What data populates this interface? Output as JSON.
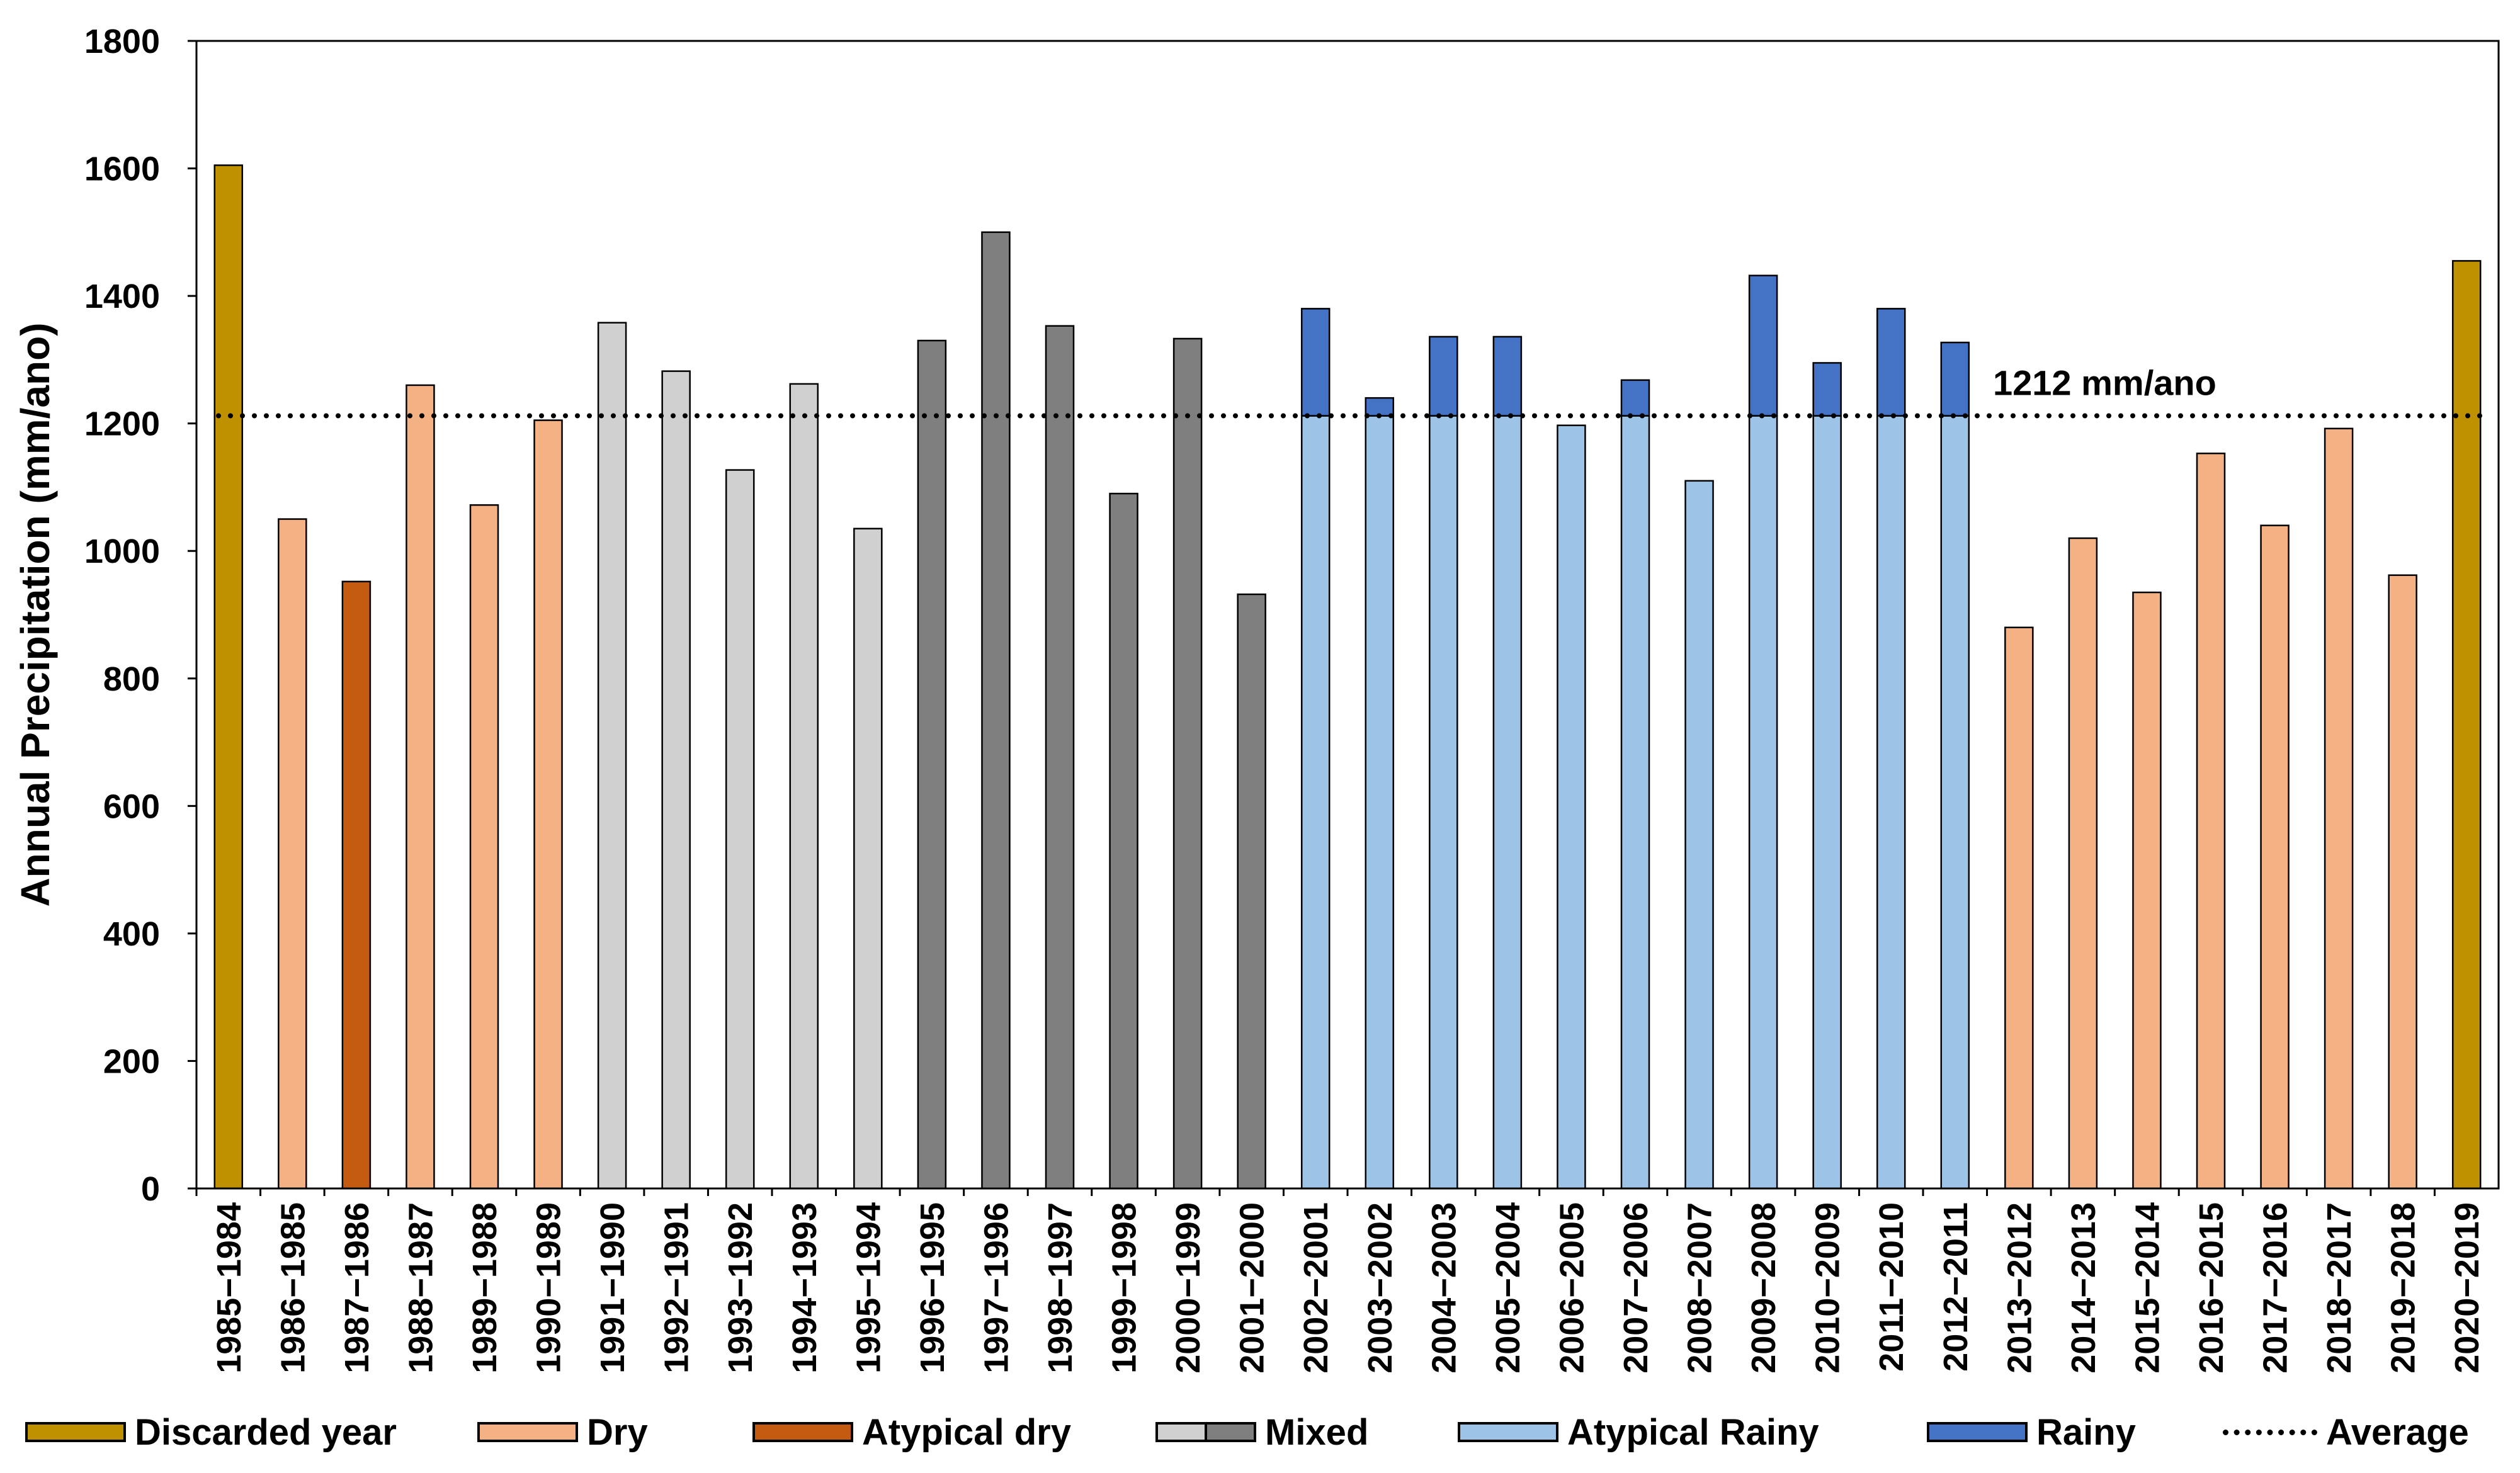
{
  "chart_data": {
    "type": "bar",
    "title": "",
    "xlabel": "",
    "ylabel": "Annual Precipitation (mm/ano)",
    "ylim": [
      0,
      1800
    ],
    "yticks": [
      0,
      200,
      400,
      600,
      800,
      1000,
      1200,
      1400,
      1600,
      1800
    ],
    "grid": false,
    "average": {
      "value": 1212,
      "label": "1212 mm/ano"
    },
    "categories": [
      "1985−1984",
      "1986−1985",
      "1987−1986",
      "1988−1987",
      "1989−1988",
      "1990−1989",
      "1991−1990",
      "1992−1991",
      "1993−1992",
      "1994−1993",
      "1995−1994",
      "1996−1995",
      "1997−1996",
      "1998−1997",
      "1999−1998",
      "2000−1999",
      "2001−2000",
      "2002−2001",
      "2003−2002",
      "2004−2003",
      "2005−2004",
      "2006−2005",
      "2007−2006",
      "2008−2007",
      "2009−2008",
      "2010−2009",
      "2011−2010",
      "2012−2011",
      "2013−2012",
      "2014−2013",
      "2015−2014",
      "2016−2015",
      "2017−2016",
      "2018−2017",
      "2019−2018",
      "2020−2019"
    ],
    "values": [
      1605,
      1050,
      952,
      1260,
      1072,
      1205,
      1358,
      1282,
      1127,
      1262,
      1035,
      1330,
      1500,
      1353,
      1090,
      1333,
      932,
      1380,
      1240,
      1336,
      1336,
      1197,
      1268,
      1110,
      1432,
      1295,
      1380,
      1327,
      880,
      1020,
      935,
      1153,
      1040,
      1192,
      962,
      1455
    ],
    "classes": [
      "discarded",
      "dry",
      "atypical_dry",
      "dry",
      "dry",
      "dry",
      "mixed_light",
      "mixed_light",
      "mixed_light",
      "mixed_light",
      "mixed_light",
      "mixed_dark",
      "mixed_dark",
      "mixed_dark",
      "mixed_dark",
      "mixed_dark",
      "mixed_dark",
      "rainy",
      "rainy",
      "rainy",
      "rainy",
      "atypical_rainy",
      "rainy",
      "atypical_rainy",
      "rainy",
      "rainy",
      "rainy",
      "rainy",
      "dry",
      "dry",
      "dry",
      "dry",
      "dry",
      "dry",
      "dry",
      "discarded"
    ],
    "colors": {
      "discarded": "#BF9000",
      "dry": "#F4B183",
      "atypical_dry": "#C55A11",
      "mixed_light": "#D0D0D0",
      "mixed_dark": "#7F7F7F",
      "atypical_rainy": "#9DC3E6",
      "rainy": "#4472C4"
    },
    "legend": [
      {
        "label": "Discarded year",
        "color": "#BF9000"
      },
      {
        "label": "Dry",
        "color": "#F4B183"
      },
      {
        "label": "Atypical dry",
        "color": "#C55A11"
      },
      {
        "label": "Mixed",
        "colors": [
          "#D0D0D0",
          "#7F7F7F"
        ]
      },
      {
        "label": "Atypical Rainy",
        "color": "#9DC3E6"
      },
      {
        "label": "Rainy",
        "color": "#4472C4"
      },
      {
        "label": "Average",
        "style": "dotted"
      }
    ]
  }
}
